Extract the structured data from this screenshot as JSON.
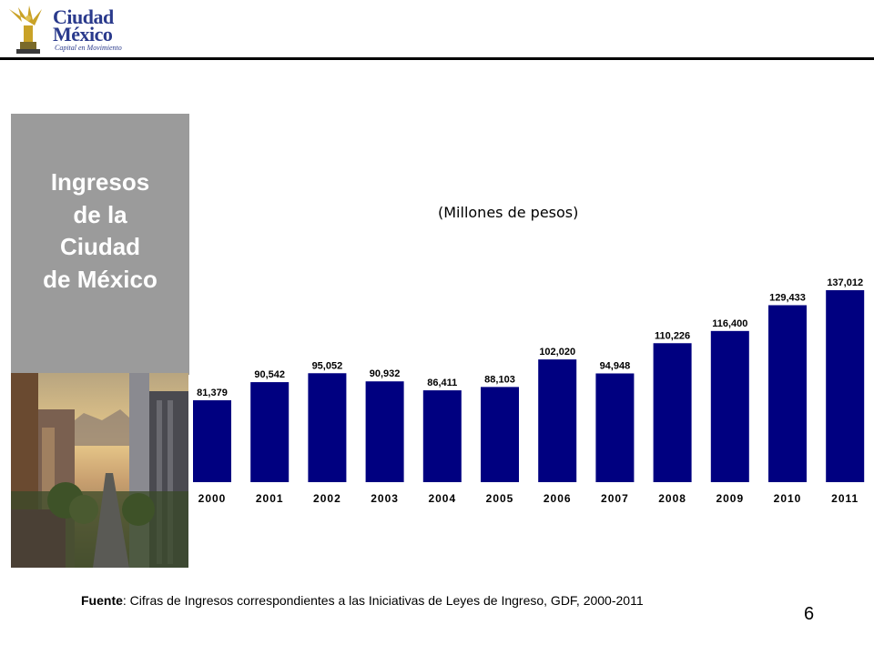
{
  "header": {
    "logo_line1": "Ciudad",
    "logo_line2": "México",
    "logo_tagline": "Capital en Movimiento"
  },
  "side_title": [
    "Ingresos",
    "de la",
    "Ciudad",
    "de México"
  ],
  "subtitle": "(Millones de pesos)",
  "chart_data": {
    "type": "bar",
    "categories": [
      "2000",
      "2001",
      "2002",
      "2003",
      "2004",
      "2005",
      "2006",
      "2007",
      "2008",
      "2009",
      "2010",
      "2011"
    ],
    "values": [
      81379,
      90542,
      95052,
      90932,
      86411,
      88103,
      102020,
      94948,
      110226,
      116400,
      129433,
      137012
    ],
    "value_labels": [
      "81,379",
      "90,542",
      "95,052",
      "90,932",
      "86,411",
      "88,103",
      "102,020",
      "94,948",
      "110,226",
      "116,400",
      "129,433",
      "137,012"
    ],
    "bar_color": "#000080",
    "ylim": [
      40000,
      137012
    ],
    "grid": false,
    "legend": "none"
  },
  "source": {
    "label": "Fuente",
    "text": ": Cifras de Ingresos correspondientes a las Iniciativas de Leyes de Ingreso,  GDF, 2000-2011"
  },
  "page_number": "6",
  "colors": {
    "panel_gray": "#9b9b9b",
    "logo_blue": "#2a3a8c",
    "logo_gold": "#c9a227"
  }
}
